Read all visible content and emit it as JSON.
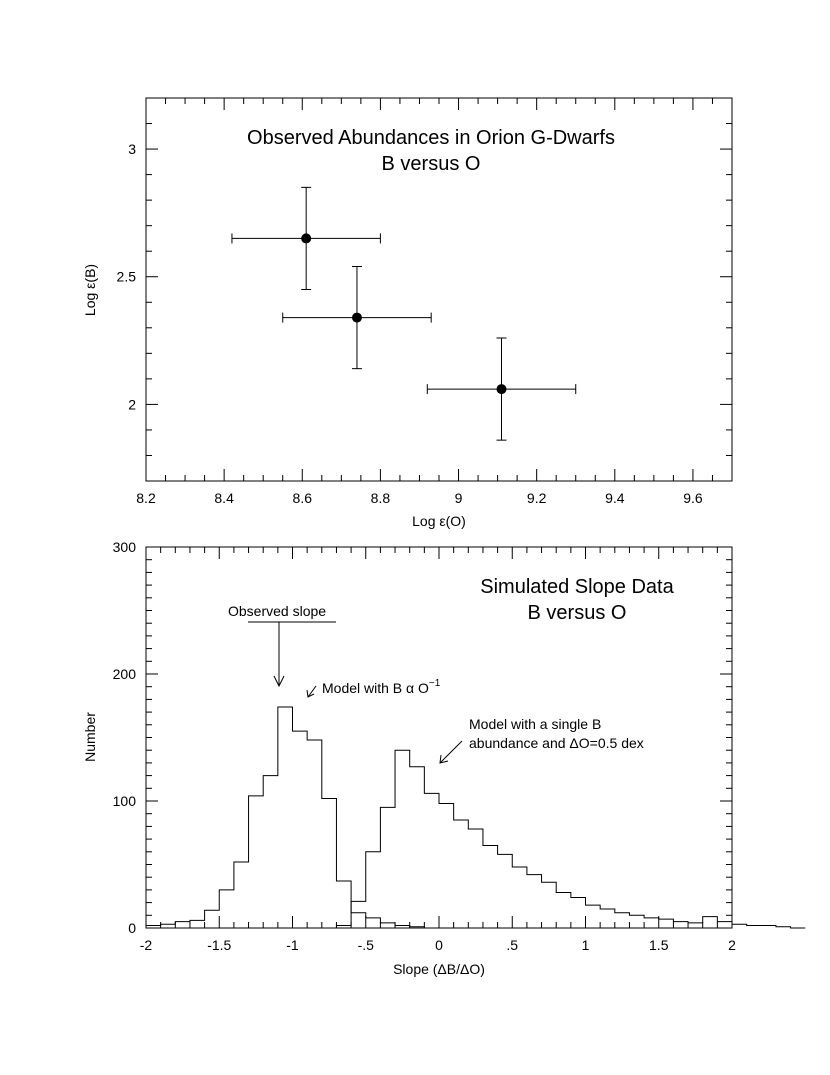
{
  "chart_data": [
    {
      "type": "scatter",
      "title": "Observed Abundances in Orion G-Dwarfs",
      "subtitle": "B versus O",
      "xlabel": "Log ε(O)",
      "ylabel": "Log ε(B)",
      "xlim": [
        8.2,
        9.7
      ],
      "ylim": [
        1.7,
        3.2
      ],
      "xticks": [
        "8.2",
        "8.4",
        "8.6",
        "8.8",
        "9",
        "9.2",
        "9.4",
        "9.6"
      ],
      "yticks": [
        "2",
        "2.5",
        "3"
      ],
      "grid": false,
      "points": [
        {
          "x": 8.61,
          "y": 2.65,
          "x_err": [
            8.42,
            8.8
          ],
          "y_err": [
            2.45,
            2.85
          ]
        },
        {
          "x": 8.74,
          "y": 2.34,
          "x_err": [
            8.55,
            8.93
          ],
          "y_err": [
            2.14,
            2.54
          ]
        },
        {
          "x": 9.11,
          "y": 2.06,
          "x_err": [
            8.92,
            9.3
          ],
          "y_err": [
            1.86,
            2.26
          ]
        }
      ]
    },
    {
      "type": "histogram",
      "title": "Simulated Slope Data",
      "subtitle": "B versus O",
      "xlabel": "Slope (ΔB/ΔO)",
      "ylabel": "Number",
      "xlim": [
        -2,
        2
      ],
      "ylim": [
        0,
        300
      ],
      "xticks": [
        "-2",
        "-1.5",
        "-1",
        "-.5",
        "0",
        ".5",
        "1",
        "1.5",
        "2"
      ],
      "yticks": [
        "0",
        "100",
        "200",
        "300"
      ],
      "grid": false,
      "bin_width": 0.1,
      "series": [
        {
          "bin_start": -2.0,
          "values": [
            2,
            3,
            5,
            6,
            14,
            30,
            52,
            104,
            120,
            174,
            155,
            148,
            102,
            37,
            12,
            8,
            4,
            2,
            1,
            0
          ]
        },
        {
          "bin_start": -0.7,
          "values": [
            2,
            21,
            60,
            95,
            140,
            127,
            106,
            98,
            85,
            78,
            65,
            58,
            48,
            42,
            36,
            28,
            24,
            18,
            15,
            12,
            10,
            8,
            7,
            5,
            4,
            9,
            5,
            3,
            2,
            2,
            1,
            0
          ]
        }
      ],
      "annotations": [
        {
          "text": "Observed slope",
          "x": -1.08,
          "y": 240
        },
        {
          "text": "Model with B α O",
          "superscript": "−1",
          "x": -0.8,
          "y": 185
        },
        {
          "text": "Model with a single B",
          "x": 0.22,
          "y": 155
        },
        {
          "text": "abundance and ΔO=0.5 dex",
          "x": 0.22,
          "y": 135
        }
      ]
    }
  ]
}
